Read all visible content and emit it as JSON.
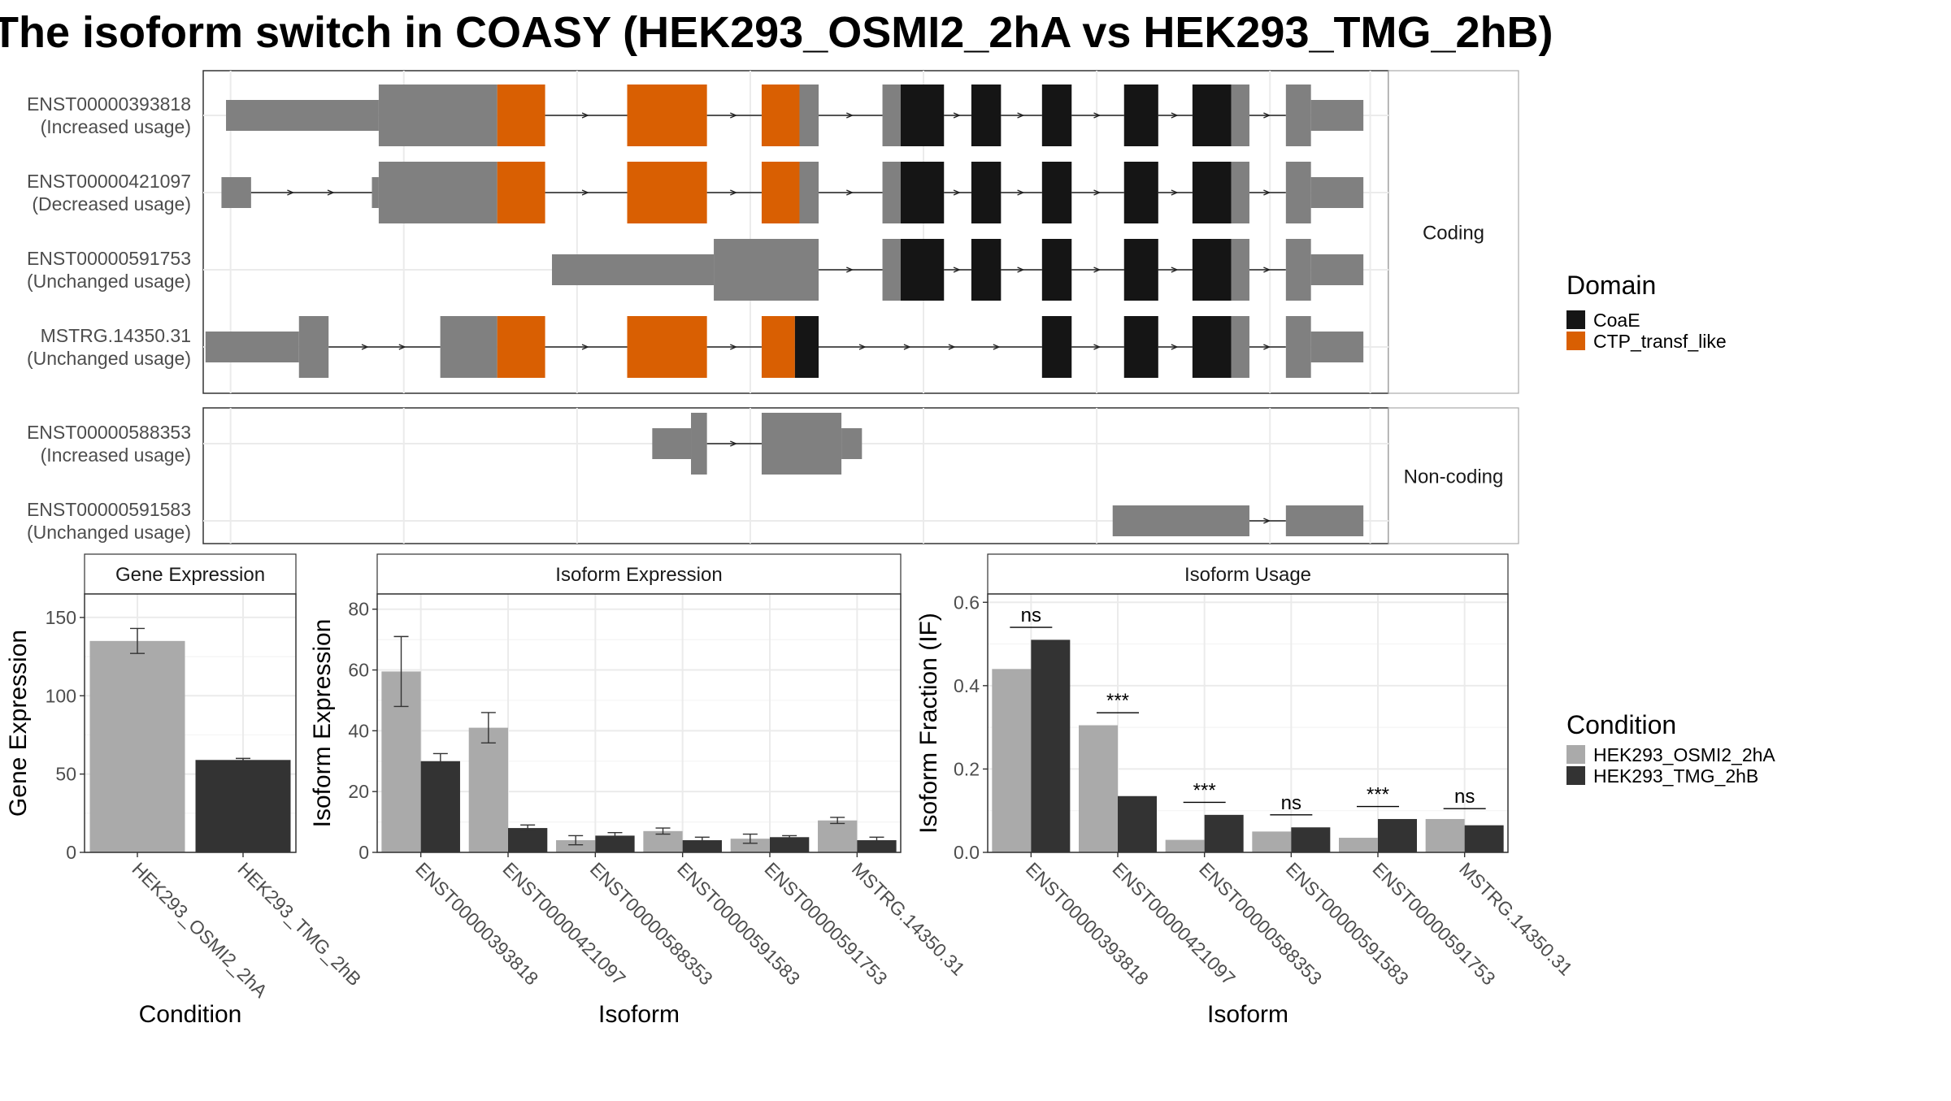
{
  "title": "The isoform switch in COASY (HEK293_OSMI2_2hA vs HEK293_TMG_2hB)",
  "colors": {
    "utr": "#808080",
    "CoaE": "#151515",
    "CTP_transf_like": "#d95f02",
    "condA": "#aaaaaa",
    "condB": "#333333"
  },
  "structure": {
    "genome_range": [
      0,
      2600
    ],
    "facets": [
      {
        "name": "Coding",
        "label": "Coding"
      },
      {
        "name": "Non-coding",
        "label": "Non-coding"
      }
    ],
    "transcripts": [
      {
        "id": "ENST00000393818",
        "usage": "(Increased usage)",
        "facet": "Coding",
        "exons": [
          {
            "s": 50,
            "e": 385,
            "kind": "utr"
          },
          {
            "s": 385,
            "e": 645,
            "kind": "cds",
            "domain": "none"
          },
          {
            "s": 645,
            "e": 750,
            "kind": "cds",
            "domain": "CTP_transf_like"
          },
          {
            "s": 930,
            "e": 1105,
            "kind": "cds",
            "domain": "CTP_transf_like"
          },
          {
            "s": 1225,
            "e": 1308,
            "kind": "cds",
            "domain": "CTP_transf_like"
          },
          {
            "s": 1308,
            "e": 1350,
            "kind": "cds",
            "domain": "none"
          },
          {
            "s": 1490,
            "e": 1530,
            "kind": "cds",
            "domain": "none"
          },
          {
            "s": 1530,
            "e": 1625,
            "kind": "cds",
            "domain": "CoaE"
          },
          {
            "s": 1685,
            "e": 1750,
            "kind": "cds",
            "domain": "CoaE"
          },
          {
            "s": 1840,
            "e": 1905,
            "kind": "cds",
            "domain": "CoaE"
          },
          {
            "s": 2020,
            "e": 2095,
            "kind": "cds",
            "domain": "CoaE"
          },
          {
            "s": 2170,
            "e": 2255,
            "kind": "cds",
            "domain": "CoaE"
          },
          {
            "s": 2255,
            "e": 2295,
            "kind": "cds",
            "domain": "none"
          },
          {
            "s": 2375,
            "e": 2430,
            "kind": "cds",
            "domain": "none"
          },
          {
            "s": 2430,
            "e": 2545,
            "kind": "utr"
          }
        ]
      },
      {
        "id": "ENST00000421097",
        "usage": "(Decreased usage)",
        "facet": "Coding",
        "exons": [
          {
            "s": 40,
            "e": 105,
            "kind": "utr"
          },
          {
            "s": 370,
            "e": 385,
            "kind": "utr"
          },
          {
            "s": 385,
            "e": 645,
            "kind": "cds",
            "domain": "none"
          },
          {
            "s": 645,
            "e": 750,
            "kind": "cds",
            "domain": "CTP_transf_like"
          },
          {
            "s": 930,
            "e": 1105,
            "kind": "cds",
            "domain": "CTP_transf_like"
          },
          {
            "s": 1225,
            "e": 1308,
            "kind": "cds",
            "domain": "CTP_transf_like"
          },
          {
            "s": 1308,
            "e": 1350,
            "kind": "cds",
            "domain": "none"
          },
          {
            "s": 1490,
            "e": 1530,
            "kind": "cds",
            "domain": "none"
          },
          {
            "s": 1530,
            "e": 1625,
            "kind": "cds",
            "domain": "CoaE"
          },
          {
            "s": 1685,
            "e": 1750,
            "kind": "cds",
            "domain": "CoaE"
          },
          {
            "s": 1840,
            "e": 1905,
            "kind": "cds",
            "domain": "CoaE"
          },
          {
            "s": 2020,
            "e": 2095,
            "kind": "cds",
            "domain": "CoaE"
          },
          {
            "s": 2170,
            "e": 2255,
            "kind": "cds",
            "domain": "CoaE"
          },
          {
            "s": 2255,
            "e": 2295,
            "kind": "cds",
            "domain": "none"
          },
          {
            "s": 2375,
            "e": 2430,
            "kind": "cds",
            "domain": "none"
          },
          {
            "s": 2430,
            "e": 2545,
            "kind": "utr"
          }
        ]
      },
      {
        "id": "ENST00000591753",
        "usage": "(Unchanged usage)",
        "facet": "Coding",
        "exons": [
          {
            "s": 765,
            "e": 1120,
            "kind": "utr"
          },
          {
            "s": 1120,
            "e": 1350,
            "kind": "cds",
            "domain": "none"
          },
          {
            "s": 1490,
            "e": 1530,
            "kind": "cds",
            "domain": "none"
          },
          {
            "s": 1530,
            "e": 1625,
            "kind": "cds",
            "domain": "CoaE"
          },
          {
            "s": 1685,
            "e": 1750,
            "kind": "cds",
            "domain": "CoaE"
          },
          {
            "s": 1840,
            "e": 1905,
            "kind": "cds",
            "domain": "CoaE"
          },
          {
            "s": 2020,
            "e": 2095,
            "kind": "cds",
            "domain": "CoaE"
          },
          {
            "s": 2170,
            "e": 2255,
            "kind": "cds",
            "domain": "CoaE"
          },
          {
            "s": 2255,
            "e": 2295,
            "kind": "cds",
            "domain": "none"
          },
          {
            "s": 2375,
            "e": 2430,
            "kind": "cds",
            "domain": "none"
          },
          {
            "s": 2430,
            "e": 2545,
            "kind": "utr"
          }
        ]
      },
      {
        "id": "MSTRG.14350.31",
        "usage": "(Unchanged usage)",
        "facet": "Coding",
        "exons": [
          {
            "s": 5,
            "e": 210,
            "kind": "utr"
          },
          {
            "s": 210,
            "e": 275,
            "kind": "cds",
            "domain": "none"
          },
          {
            "s": 520,
            "e": 645,
            "kind": "cds",
            "domain": "none"
          },
          {
            "s": 645,
            "e": 750,
            "kind": "cds",
            "domain": "CTP_transf_like"
          },
          {
            "s": 930,
            "e": 1105,
            "kind": "cds",
            "domain": "CTP_transf_like"
          },
          {
            "s": 1225,
            "e": 1298,
            "kind": "cds",
            "domain": "CTP_transf_like"
          },
          {
            "s": 1298,
            "e": 1350,
            "kind": "cds",
            "domain": "CoaE"
          },
          {
            "s": 1840,
            "e": 1905,
            "kind": "cds",
            "domain": "CoaE"
          },
          {
            "s": 2020,
            "e": 2095,
            "kind": "cds",
            "domain": "CoaE"
          },
          {
            "s": 2170,
            "e": 2255,
            "kind": "cds",
            "domain": "CoaE"
          },
          {
            "s": 2255,
            "e": 2295,
            "kind": "cds",
            "domain": "none"
          },
          {
            "s": 2375,
            "e": 2430,
            "kind": "cds",
            "domain": "none"
          },
          {
            "s": 2430,
            "e": 2545,
            "kind": "utr"
          }
        ]
      },
      {
        "id": "ENST00000588353",
        "usage": "(Increased usage)",
        "facet": "Non-coding",
        "exons": [
          {
            "s": 985,
            "e": 1070,
            "kind": "utr"
          },
          {
            "s": 1070,
            "e": 1105,
            "kind": "cds",
            "domain": "none"
          },
          {
            "s": 1225,
            "e": 1400,
            "kind": "cds",
            "domain": "none"
          },
          {
            "s": 1400,
            "e": 1445,
            "kind": "utr"
          }
        ]
      },
      {
        "id": "ENST00000591583",
        "usage": "(Unchanged usage)",
        "facet": "Non-coding",
        "exons": [
          {
            "s": 1995,
            "e": 2295,
            "kind": "utr"
          },
          {
            "s": 2375,
            "e": 2545,
            "kind": "utr"
          }
        ]
      }
    ],
    "legend": {
      "title": "Domain",
      "items": [
        {
          "label": "CoaE",
          "color": "#151515"
        },
        {
          "label": "CTP_transf_like",
          "color": "#d95f02"
        }
      ]
    }
  },
  "chart_data": [
    {
      "type": "bar",
      "panel": "Gene Expression",
      "title": "Gene Expression",
      "xlabel": "Condition",
      "ylabel": "Gene Expression",
      "ylim": [
        0,
        165
      ],
      "yticks": [
        0,
        50,
        100,
        150
      ],
      "categories": [
        "HEK293_OSMI2_2hA",
        "HEK293_TMG_2hB"
      ],
      "values": [
        135,
        59
      ],
      "errors": [
        [
          127,
          143
        ],
        [
          58,
          60
        ]
      ],
      "colors": [
        "#aaaaaa",
        "#333333"
      ]
    },
    {
      "type": "bar",
      "panel": "Isoform Expression",
      "title": "Isoform Expression",
      "xlabel": "Isoform",
      "ylabel": "Isoform Expression",
      "ylim": [
        0,
        85
      ],
      "yticks": [
        0,
        20,
        40,
        60,
        80
      ],
      "categories": [
        "ENST00000393818",
        "ENST00000421097",
        "ENST00000588353",
        "ENST00000591583",
        "ENST00000591753",
        "MSTRG.14350.31"
      ],
      "series": [
        {
          "name": "HEK293_OSMI2_2hA",
          "values": [
            59.5,
            41,
            4,
            7,
            4.5,
            10.5
          ],
          "errors": [
            [
              48,
              71
            ],
            [
              36,
              46
            ],
            [
              2.5,
              5.5
            ],
            [
              6,
              8
            ],
            [
              3,
              6
            ],
            [
              9.5,
              11.5
            ]
          ]
        },
        {
          "name": "HEK293_TMG_2hB",
          "values": [
            30,
            8,
            5.5,
            4,
            5,
            4
          ],
          "errors": [
            [
              28,
              32.5
            ],
            [
              7,
              9
            ],
            [
              4.5,
              6.5
            ],
            [
              3,
              5
            ],
            [
              4.5,
              5.5
            ],
            [
              3,
              5
            ]
          ]
        }
      ]
    },
    {
      "type": "bar",
      "panel": "Isoform Usage",
      "title": "Isoform Usage",
      "xlabel": "Isoform",
      "ylabel": "Isoform Fraction (IF)",
      "ylim": [
        0,
        0.62
      ],
      "yticks": [
        0.0,
        0.2,
        0.4,
        0.6
      ],
      "ytick_labels": [
        "0.0",
        "0.2",
        "0.4",
        "0.6"
      ],
      "categories": [
        "ENST00000393818",
        "ENST00000421097",
        "ENST00000588353",
        "ENST00000591583",
        "ENST00000591753",
        "MSTRG.14350.31"
      ],
      "series": [
        {
          "name": "HEK293_OSMI2_2hA",
          "values": [
            0.44,
            0.305,
            0.03,
            0.05,
            0.035,
            0.08
          ]
        },
        {
          "name": "HEK293_TMG_2hB",
          "values": [
            0.51,
            0.135,
            0.09,
            0.06,
            0.08,
            0.065
          ]
        }
      ],
      "significance": [
        {
          "label": "ns",
          "y": 0.54
        },
        {
          "label": "***",
          "y": 0.335
        },
        {
          "label": "***",
          "y": 0.12
        },
        {
          "label": "ns",
          "y": 0.09
        },
        {
          "label": "***",
          "y": 0.11
        },
        {
          "label": "ns",
          "y": 0.105
        }
      ]
    }
  ],
  "condition_legend": {
    "title": "Condition",
    "items": [
      {
        "label": "HEK293_OSMI2_2hA",
        "color": "#aaaaaa"
      },
      {
        "label": "HEK293_TMG_2hB",
        "color": "#333333"
      }
    ]
  }
}
